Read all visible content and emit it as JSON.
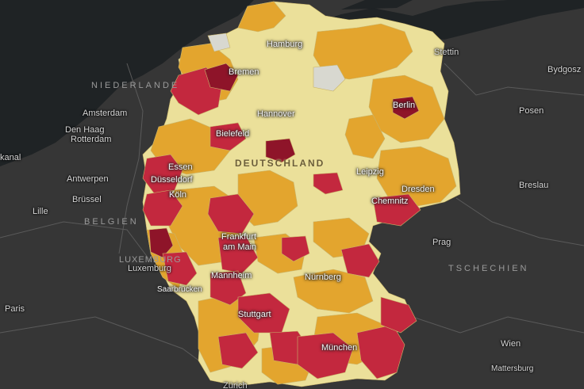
{
  "colors": {
    "sea": "#1f2325",
    "land": "#363636",
    "border": "#5a5a5a",
    "low": "#ebe09a",
    "medium": "#e3a52e",
    "high": "#c3283e",
    "very_high": "#8e1429",
    "none": "#d8d8d0"
  },
  "labels": {
    "countries": {
      "netherlands": "NIEDERLANDE",
      "belgium": "BELGIEN",
      "luxembourg": "LUXEMBURG",
      "czechia": "TSCHECHIEN",
      "germany": "DEUTSCHLAND"
    },
    "foreign_cities": {
      "amsterdam": "Amsterdam",
      "den_haag": "Den Haag",
      "rotterdam": "Rotterdam",
      "antwerpen": "Antwerpen",
      "bruessel": "Brüssel",
      "lille": "Lille",
      "luxemburg": "Luxemburg",
      "paris": "Paris",
      "prag": "Prag",
      "posen": "Posen",
      "breslau": "Breslau",
      "bydgosz": "Bydgosz",
      "wien": "Wien",
      "mattersburg": "Mattersburg",
      "zuerich": "Zürich",
      "stettin": "Stettin",
      "kanal": "kanal"
    },
    "german_cities": {
      "hamburg": "Hamburg",
      "bremen": "Bremen",
      "hannover": "Hannover",
      "berlin": "Berlin",
      "bielefeld": "Bielefeld",
      "essen": "Essen",
      "duesseldorf": "Düsseldorf",
      "koeln": "Köln",
      "leipzig": "Leipzig",
      "dresden": "Dresden",
      "chemnitz": "Chemnitz",
      "frankfurt_line1": "Frankfurt",
      "frankfurt_line2": "am Main",
      "mannheim": "Mannheim",
      "saarbruecken": "Saarbrücken",
      "nuernberg": "Nürnberg",
      "stuttgart": "Stuttgart",
      "muenchen": "München"
    }
  }
}
